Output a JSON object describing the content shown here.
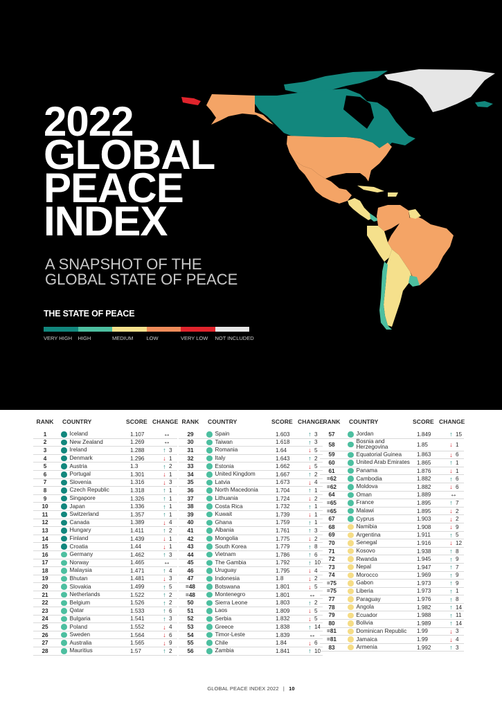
{
  "hero": {
    "title_lines": [
      "2022",
      "GLOBAL",
      "PEACE",
      "INDEX"
    ],
    "subtitle_lines": [
      "A SNAPSHOT OF THE",
      "GLOBAL STATE OF PEACE"
    ]
  },
  "legend": {
    "title": "THE STATE OF PEACE",
    "items": [
      {
        "label": "VERY HIGH",
        "color": "#12877d"
      },
      {
        "label": "HIGH",
        "color": "#4dbfa0"
      },
      {
        "label": "MEDIUM",
        "color": "#f5e08c"
      },
      {
        "label": "LOW",
        "color": "#ef8c5a"
      },
      {
        "label": "VERY LOW",
        "color": "#e0242c"
      },
      {
        "label": "NOT INCLUDED",
        "color": "#e6e6e6"
      }
    ]
  },
  "colors": {
    "very_high": "#12877d",
    "high": "#4dbfa0",
    "medium": "#f5dc86",
    "up": "#1a8a7e",
    "down": "#d6262f"
  },
  "table": {
    "headers": {
      "rank": "RANK",
      "country": "COUNTRY",
      "score": "SCORE",
      "change": "CHANGE"
    },
    "columns": [
      [
        {
          "rank": "1",
          "country": "Iceland",
          "score": "1.107",
          "dir": "same",
          "change": "",
          "level": "very_high"
        },
        {
          "rank": "2",
          "country": "New Zealand",
          "score": "1.269",
          "dir": "same",
          "change": "",
          "level": "very_high"
        },
        {
          "rank": "3",
          "country": "Ireland",
          "score": "1.288",
          "dir": "up",
          "change": "3",
          "level": "very_high"
        },
        {
          "rank": "4",
          "country": "Denmark",
          "score": "1.296",
          "dir": "down",
          "change": "1",
          "level": "very_high"
        },
        {
          "rank": "5",
          "country": "Austria",
          "score": "1.3",
          "dir": "up",
          "change": "2",
          "level": "very_high"
        },
        {
          "rank": "6",
          "country": "Portugal",
          "score": "1.301",
          "dir": "down",
          "change": "1",
          "level": "very_high"
        },
        {
          "rank": "7",
          "country": "Slovenia",
          "score": "1.316",
          "dir": "down",
          "change": "3",
          "level": "very_high"
        },
        {
          "rank": "8",
          "country": "Czech Republic",
          "score": "1.318",
          "dir": "up",
          "change": "1",
          "level": "very_high"
        },
        {
          "rank": "9",
          "country": "Singapore",
          "score": "1.326",
          "dir": "up",
          "change": "1",
          "level": "very_high"
        },
        {
          "rank": "10",
          "country": "Japan",
          "score": "1.336",
          "dir": "up",
          "change": "1",
          "level": "very_high"
        },
        {
          "rank": "11",
          "country": "Switzerland",
          "score": "1.357",
          "dir": "up",
          "change": "1",
          "level": "very_high"
        },
        {
          "rank": "12",
          "country": "Canada",
          "score": "1.389",
          "dir": "down",
          "change": "4",
          "level": "very_high"
        },
        {
          "rank": "13",
          "country": "Hungary",
          "score": "1.411",
          "dir": "up",
          "change": "2",
          "level": "very_high"
        },
        {
          "rank": "14",
          "country": "Finland",
          "score": "1.439",
          "dir": "down",
          "change": "1",
          "level": "very_high"
        },
        {
          "rank": "15",
          "country": "Croatia",
          "score": "1.44",
          "dir": "down",
          "change": "1",
          "level": "very_high"
        },
        {
          "rank": "16",
          "country": "Germany",
          "score": "1.462",
          "dir": "up",
          "change": "3",
          "level": "high"
        },
        {
          "rank": "17",
          "country": "Norway",
          "score": "1.465",
          "dir": "same",
          "change": "",
          "level": "high"
        },
        {
          "rank": "18",
          "country": "Malaysia",
          "score": "1.471",
          "dir": "up",
          "change": "4",
          "level": "high"
        },
        {
          "rank": "19",
          "country": "Bhutan",
          "score": "1.481",
          "dir": "down",
          "change": "3",
          "level": "high"
        },
        {
          "rank": "20",
          "country": "Slovakia",
          "score": "1.499",
          "dir": "up",
          "change": "5",
          "level": "high"
        },
        {
          "rank": "21",
          "country": "Netherlands",
          "score": "1.522",
          "dir": "up",
          "change": "2",
          "level": "high"
        },
        {
          "rank": "22",
          "country": "Belgium",
          "score": "1.526",
          "dir": "up",
          "change": "2",
          "level": "high"
        },
        {
          "rank": "23",
          "country": "Qatar",
          "score": "1.533",
          "dir": "up",
          "change": "6",
          "level": "high"
        },
        {
          "rank": "24",
          "country": "Bulgaria",
          "score": "1.541",
          "dir": "up",
          "change": "3",
          "level": "high"
        },
        {
          "rank": "25",
          "country": "Poland",
          "score": "1.552",
          "dir": "down",
          "change": "4",
          "level": "high"
        },
        {
          "rank": "26",
          "country": "Sweden",
          "score": "1.564",
          "dir": "down",
          "change": "6",
          "level": "high"
        },
        {
          "rank": "27",
          "country": "Australia",
          "score": "1.565",
          "dir": "down",
          "change": "9",
          "level": "high"
        },
        {
          "rank": "28",
          "country": "Mauritius",
          "score": "1.57",
          "dir": "up",
          "change": "2",
          "level": "high"
        }
      ],
      [
        {
          "rank": "29",
          "country": "Spain",
          "score": "1.603",
          "dir": "up",
          "change": "3",
          "level": "high"
        },
        {
          "rank": "30",
          "country": "Taiwan",
          "score": "1.618",
          "dir": "up",
          "change": "3",
          "level": "high"
        },
        {
          "rank": "31",
          "country": "Romania",
          "score": "1.64",
          "dir": "down",
          "change": "5",
          "level": "high"
        },
        {
          "rank": "32",
          "country": "Italy",
          "score": "1.643",
          "dir": "up",
          "change": "2",
          "level": "high"
        },
        {
          "rank": "33",
          "country": "Estonia",
          "score": "1.662",
          "dir": "down",
          "change": "5",
          "level": "high"
        },
        {
          "rank": "34",
          "country": "United Kingdom",
          "score": "1.667",
          "dir": "up",
          "change": "2",
          "level": "high"
        },
        {
          "rank": "35",
          "country": "Latvia",
          "score": "1.673",
          "dir": "down",
          "change": "4",
          "level": "high"
        },
        {
          "rank": "36",
          "country": "North Macedonia",
          "score": "1.704",
          "dir": "up",
          "change": "1",
          "level": "high"
        },
        {
          "rank": "37",
          "country": "Lithuania",
          "score": "1.724",
          "dir": "down",
          "change": "2",
          "level": "high"
        },
        {
          "rank": "38",
          "country": "Costa Rica",
          "score": "1.732",
          "dir": "up",
          "change": "1",
          "level": "high"
        },
        {
          "rank": "39",
          "country": "Kuwait",
          "score": "1.739",
          "dir": "down",
          "change": "1",
          "level": "high"
        },
        {
          "rank": "40",
          "country": "Ghana",
          "score": "1.759",
          "dir": "up",
          "change": "1",
          "level": "high"
        },
        {
          "rank": "41",
          "country": "Albania",
          "score": "1.761",
          "dir": "up",
          "change": "3",
          "level": "high"
        },
        {
          "rank": "42",
          "country": "Mongolia",
          "score": "1.775",
          "dir": "down",
          "change": "2",
          "level": "high"
        },
        {
          "rank": "43",
          "country": "South Korea",
          "score": "1.779",
          "dir": "up",
          "change": "8",
          "level": "high"
        },
        {
          "rank": "44",
          "country": "Vietnam",
          "score": "1.786",
          "dir": "up",
          "change": "6",
          "level": "high"
        },
        {
          "rank": "45",
          "country": "The Gambia",
          "score": "1.792",
          "dir": "up",
          "change": "10",
          "level": "high"
        },
        {
          "rank": "46",
          "country": "Uruguay",
          "score": "1.795",
          "dir": "down",
          "change": "4",
          "level": "high"
        },
        {
          "rank": "47",
          "country": "Indonesia",
          "score": "1.8",
          "dir": "down",
          "change": "2",
          "level": "high"
        },
        {
          "rank": "=48",
          "country": "Botswana",
          "score": "1.801",
          "dir": "down",
          "change": "5",
          "level": "high"
        },
        {
          "rank": "=48",
          "country": "Montenegro",
          "score": "1.801",
          "dir": "same",
          "change": "",
          "level": "high"
        },
        {
          "rank": "50",
          "country": "Sierra Leone",
          "score": "1.803",
          "dir": "up",
          "change": "2",
          "level": "high"
        },
        {
          "rank": "51",
          "country": "Laos",
          "score": "1.809",
          "dir": "down",
          "change": "5",
          "level": "high"
        },
        {
          "rank": "52",
          "country": "Serbia",
          "score": "1.832",
          "dir": "down",
          "change": "5",
          "level": "high"
        },
        {
          "rank": "53",
          "country": "Greece",
          "score": "1.838",
          "dir": "up",
          "change": "14",
          "level": "high"
        },
        {
          "rank": "54",
          "country": "Timor-Leste",
          "score": "1.839",
          "dir": "same",
          "change": "",
          "level": "high"
        },
        {
          "rank": "55",
          "country": "Chile",
          "score": "1.84",
          "dir": "down",
          "change": "6",
          "level": "high"
        },
        {
          "rank": "56",
          "country": "Zambia",
          "score": "1.841",
          "dir": "up",
          "change": "10",
          "level": "high"
        }
      ],
      [
        {
          "rank": "57",
          "country": "Jordan",
          "score": "1.849",
          "dir": "up",
          "change": "15",
          "level": "high"
        },
        {
          "rank": "58",
          "country": "Bosnia and Herzegovina",
          "country_lines": [
            "Bosnia and",
            "Herzegovina"
          ],
          "score": "1.85",
          "dir": "down",
          "change": "1",
          "level": "high"
        },
        {
          "rank": "59",
          "country": "Equatorial Guinea",
          "score": "1.863",
          "dir": "down",
          "change": "6",
          "level": "high"
        },
        {
          "rank": "60",
          "country": "United Arab Emirates",
          "score": "1.865",
          "dir": "up",
          "change": "1",
          "level": "high"
        },
        {
          "rank": "61",
          "country": "Panama",
          "score": "1.876",
          "dir": "down",
          "change": "1",
          "level": "high"
        },
        {
          "rank": "=62",
          "country": "Cambodia",
          "score": "1.882",
          "dir": "up",
          "change": "6",
          "level": "high"
        },
        {
          "rank": "=62",
          "country": "Moldova",
          "score": "1.882",
          "dir": "down",
          "change": "6",
          "level": "high"
        },
        {
          "rank": "64",
          "country": "Oman",
          "score": "1.889",
          "dir": "same",
          "change": "",
          "level": "high"
        },
        {
          "rank": "=65",
          "country": "France",
          "score": "1.895",
          "dir": "up",
          "change": "7",
          "level": "high"
        },
        {
          "rank": "=65",
          "country": "Malawi",
          "score": "1.895",
          "dir": "down",
          "change": "2",
          "level": "high"
        },
        {
          "rank": "67",
          "country": "Cyprus",
          "score": "1.903",
          "dir": "down",
          "change": "2",
          "level": "high"
        },
        {
          "rank": "68",
          "country": "Namibia",
          "score": "1.908",
          "dir": "down",
          "change": "9",
          "level": "medium"
        },
        {
          "rank": "69",
          "country": "Argentina",
          "score": "1.911",
          "dir": "up",
          "change": "5",
          "level": "medium"
        },
        {
          "rank": "70",
          "country": "Senegal",
          "score": "1.916",
          "dir": "down",
          "change": "12",
          "level": "medium"
        },
        {
          "rank": "71",
          "country": "Kosovo",
          "score": "1.938",
          "dir": "up",
          "change": "8",
          "level": "medium"
        },
        {
          "rank": "72",
          "country": "Rwanda",
          "score": "1.945",
          "dir": "up",
          "change": "9",
          "level": "medium"
        },
        {
          "rank": "73",
          "country": "Nepal",
          "score": "1.947",
          "dir": "up",
          "change": "7",
          "level": "medium"
        },
        {
          "rank": "74",
          "country": "Morocco",
          "score": "1.969",
          "dir": "up",
          "change": "9",
          "level": "medium"
        },
        {
          "rank": "=75",
          "country": "Gabon",
          "score": "1.973",
          "dir": "up",
          "change": "9",
          "level": "medium"
        },
        {
          "rank": "=75",
          "country": "Liberia",
          "score": "1.973",
          "dir": "up",
          "change": "1",
          "level": "medium"
        },
        {
          "rank": "77",
          "country": "Paraguay",
          "score": "1.976",
          "dir": "up",
          "change": "8",
          "level": "medium"
        },
        {
          "rank": "78",
          "country": "Angola",
          "score": "1.982",
          "dir": "up",
          "change": "14",
          "level": "medium"
        },
        {
          "rank": "79",
          "country": "Ecuador",
          "score": "1.988",
          "dir": "up",
          "change": "11",
          "level": "medium"
        },
        {
          "rank": "80",
          "country": "Bolivia",
          "score": "1.989",
          "dir": "up",
          "change": "14",
          "level": "medium"
        },
        {
          "rank": "=81",
          "country": "Dominican Republic",
          "score": "1.99",
          "dir": "down",
          "change": "3",
          "level": "medium"
        },
        {
          "rank": "=81",
          "country": "Jamaica",
          "score": "1.99",
          "dir": "down",
          "change": "4",
          "level": "medium"
        },
        {
          "rank": "83",
          "country": "Armenia",
          "score": "1.992",
          "dir": "up",
          "change": "3",
          "level": "medium"
        }
      ]
    ]
  },
  "footer": {
    "text": "GLOBAL PEACE INDEX 2022",
    "separator": "|",
    "page": "10"
  }
}
